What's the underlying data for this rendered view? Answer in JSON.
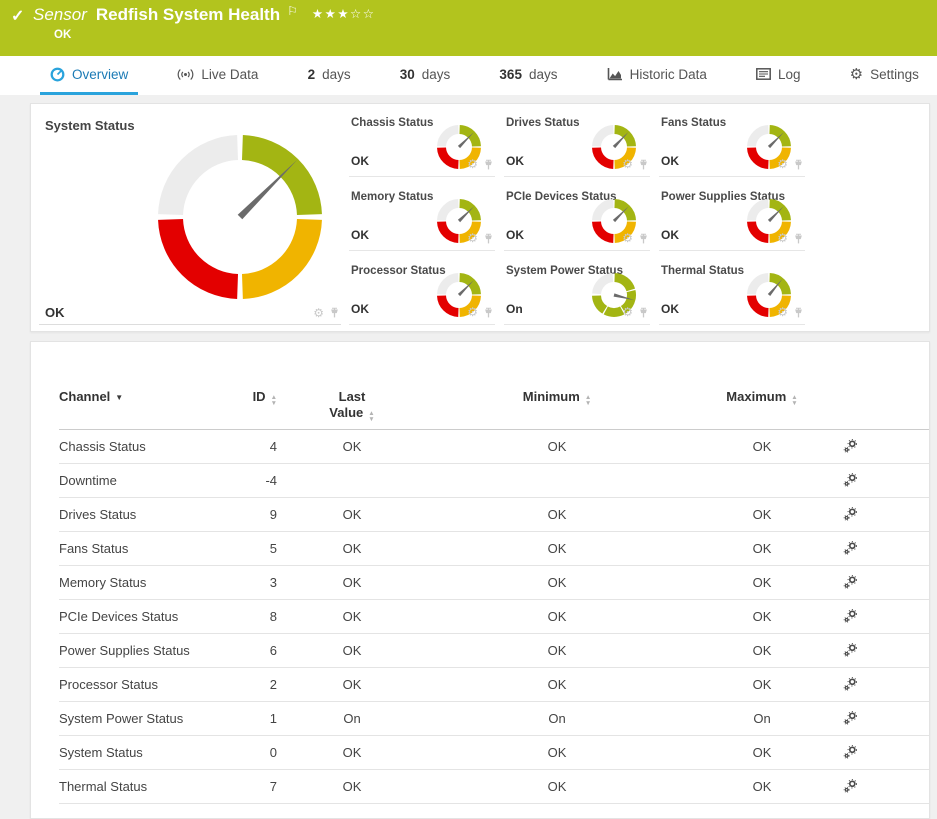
{
  "header": {
    "kind_label": "Sensor",
    "title": "Redfish System Health",
    "status": "OK",
    "rating": {
      "filled": 3,
      "total": 5
    }
  },
  "tabs": [
    {
      "label": "Overview",
      "icon": "gauge",
      "active": true
    },
    {
      "label": "Live Data",
      "icon": "live"
    },
    {
      "prefix": "2",
      "label": "days"
    },
    {
      "prefix": "30",
      "label": "days"
    },
    {
      "prefix": "365",
      "label": "days"
    },
    {
      "label": "Historic Data",
      "icon": "chart"
    },
    {
      "label": "Log",
      "icon": "log"
    },
    {
      "label": "Settings",
      "icon": "gear"
    }
  ],
  "gauge_panel": {
    "main": {
      "title": "System Status",
      "value": "OK",
      "type": "quad",
      "needle_deg": -45
    },
    "cells": [
      {
        "title": "Chassis Status",
        "value": "OK",
        "type": "quad",
        "needle_deg": -45
      },
      {
        "title": "Drives Status",
        "value": "OK",
        "type": "quad",
        "needle_deg": -46
      },
      {
        "title": "Fans Status",
        "value": "OK",
        "type": "quad",
        "needle_deg": -45
      },
      {
        "title": "Memory Status",
        "value": "OK",
        "type": "quad",
        "needle_deg": -44
      },
      {
        "title": "PCIe Devices Status",
        "value": "OK",
        "type": "quad",
        "needle_deg": -45
      },
      {
        "title": "Power Supplies Status",
        "value": "OK",
        "type": "quad",
        "needle_deg": -45
      },
      {
        "title": "Processor Status",
        "value": "OK",
        "type": "quad",
        "needle_deg": -45
      },
      {
        "title": "System Power Status",
        "value": "On",
        "type": "power",
        "needle_deg": 14
      },
      {
        "title": "Thermal Status",
        "value": "OK",
        "type": "quad",
        "needle_deg": -50
      }
    ]
  },
  "table": {
    "columns": [
      {
        "label": "Channel",
        "sort": "active-desc"
      },
      {
        "label": "ID",
        "sort": "both"
      },
      {
        "label": "Last Value",
        "sort": "both"
      },
      {
        "label": "Minimum",
        "sort": "both"
      },
      {
        "label": "Maximum",
        "sort": "both"
      }
    ],
    "rows": [
      {
        "channel": "Chassis Status",
        "id": "4",
        "last": "OK",
        "min": "OK",
        "max": "OK"
      },
      {
        "channel": "Downtime",
        "id": "-4",
        "last": "",
        "min": "",
        "max": ""
      },
      {
        "channel": "Drives Status",
        "id": "9",
        "last": "OK",
        "min": "OK",
        "max": "OK"
      },
      {
        "channel": "Fans Status",
        "id": "5",
        "last": "OK",
        "min": "OK",
        "max": "OK"
      },
      {
        "channel": "Memory Status",
        "id": "3",
        "last": "OK",
        "min": "OK",
        "max": "OK"
      },
      {
        "channel": "PCIe Devices Status",
        "id": "8",
        "last": "OK",
        "min": "OK",
        "max": "OK"
      },
      {
        "channel": "Power Supplies Status",
        "id": "6",
        "last": "OK",
        "min": "OK",
        "max": "OK"
      },
      {
        "channel": "Processor Status",
        "id": "2",
        "last": "OK",
        "min": "OK",
        "max": "OK"
      },
      {
        "channel": "System Power Status",
        "id": "1",
        "last": "On",
        "min": "On",
        "max": "On"
      },
      {
        "channel": "System Status",
        "id": "0",
        "last": "OK",
        "min": "OK",
        "max": "OK"
      },
      {
        "channel": "Thermal Status",
        "id": "7",
        "last": "OK",
        "min": "OK",
        "max": "OK"
      }
    ]
  },
  "icons": {
    "check": "✓",
    "flag": "⚐",
    "star_filled": "★",
    "star_empty": "☆",
    "gear": "⚙",
    "sort_up": "▲",
    "sort_down": "▼",
    "channel_sort": "▼"
  },
  "colors": {
    "header_green": "#b2c41e",
    "accent_blue": "#2aa3dc",
    "tab_active_text": "#1b7ab5",
    "gauge_green": "#a3b513",
    "gauge_yellow": "#f0b400",
    "gauge_red": "#e30000",
    "gauge_gray": "#ececec",
    "needle": "#6b6b6b"
  }
}
